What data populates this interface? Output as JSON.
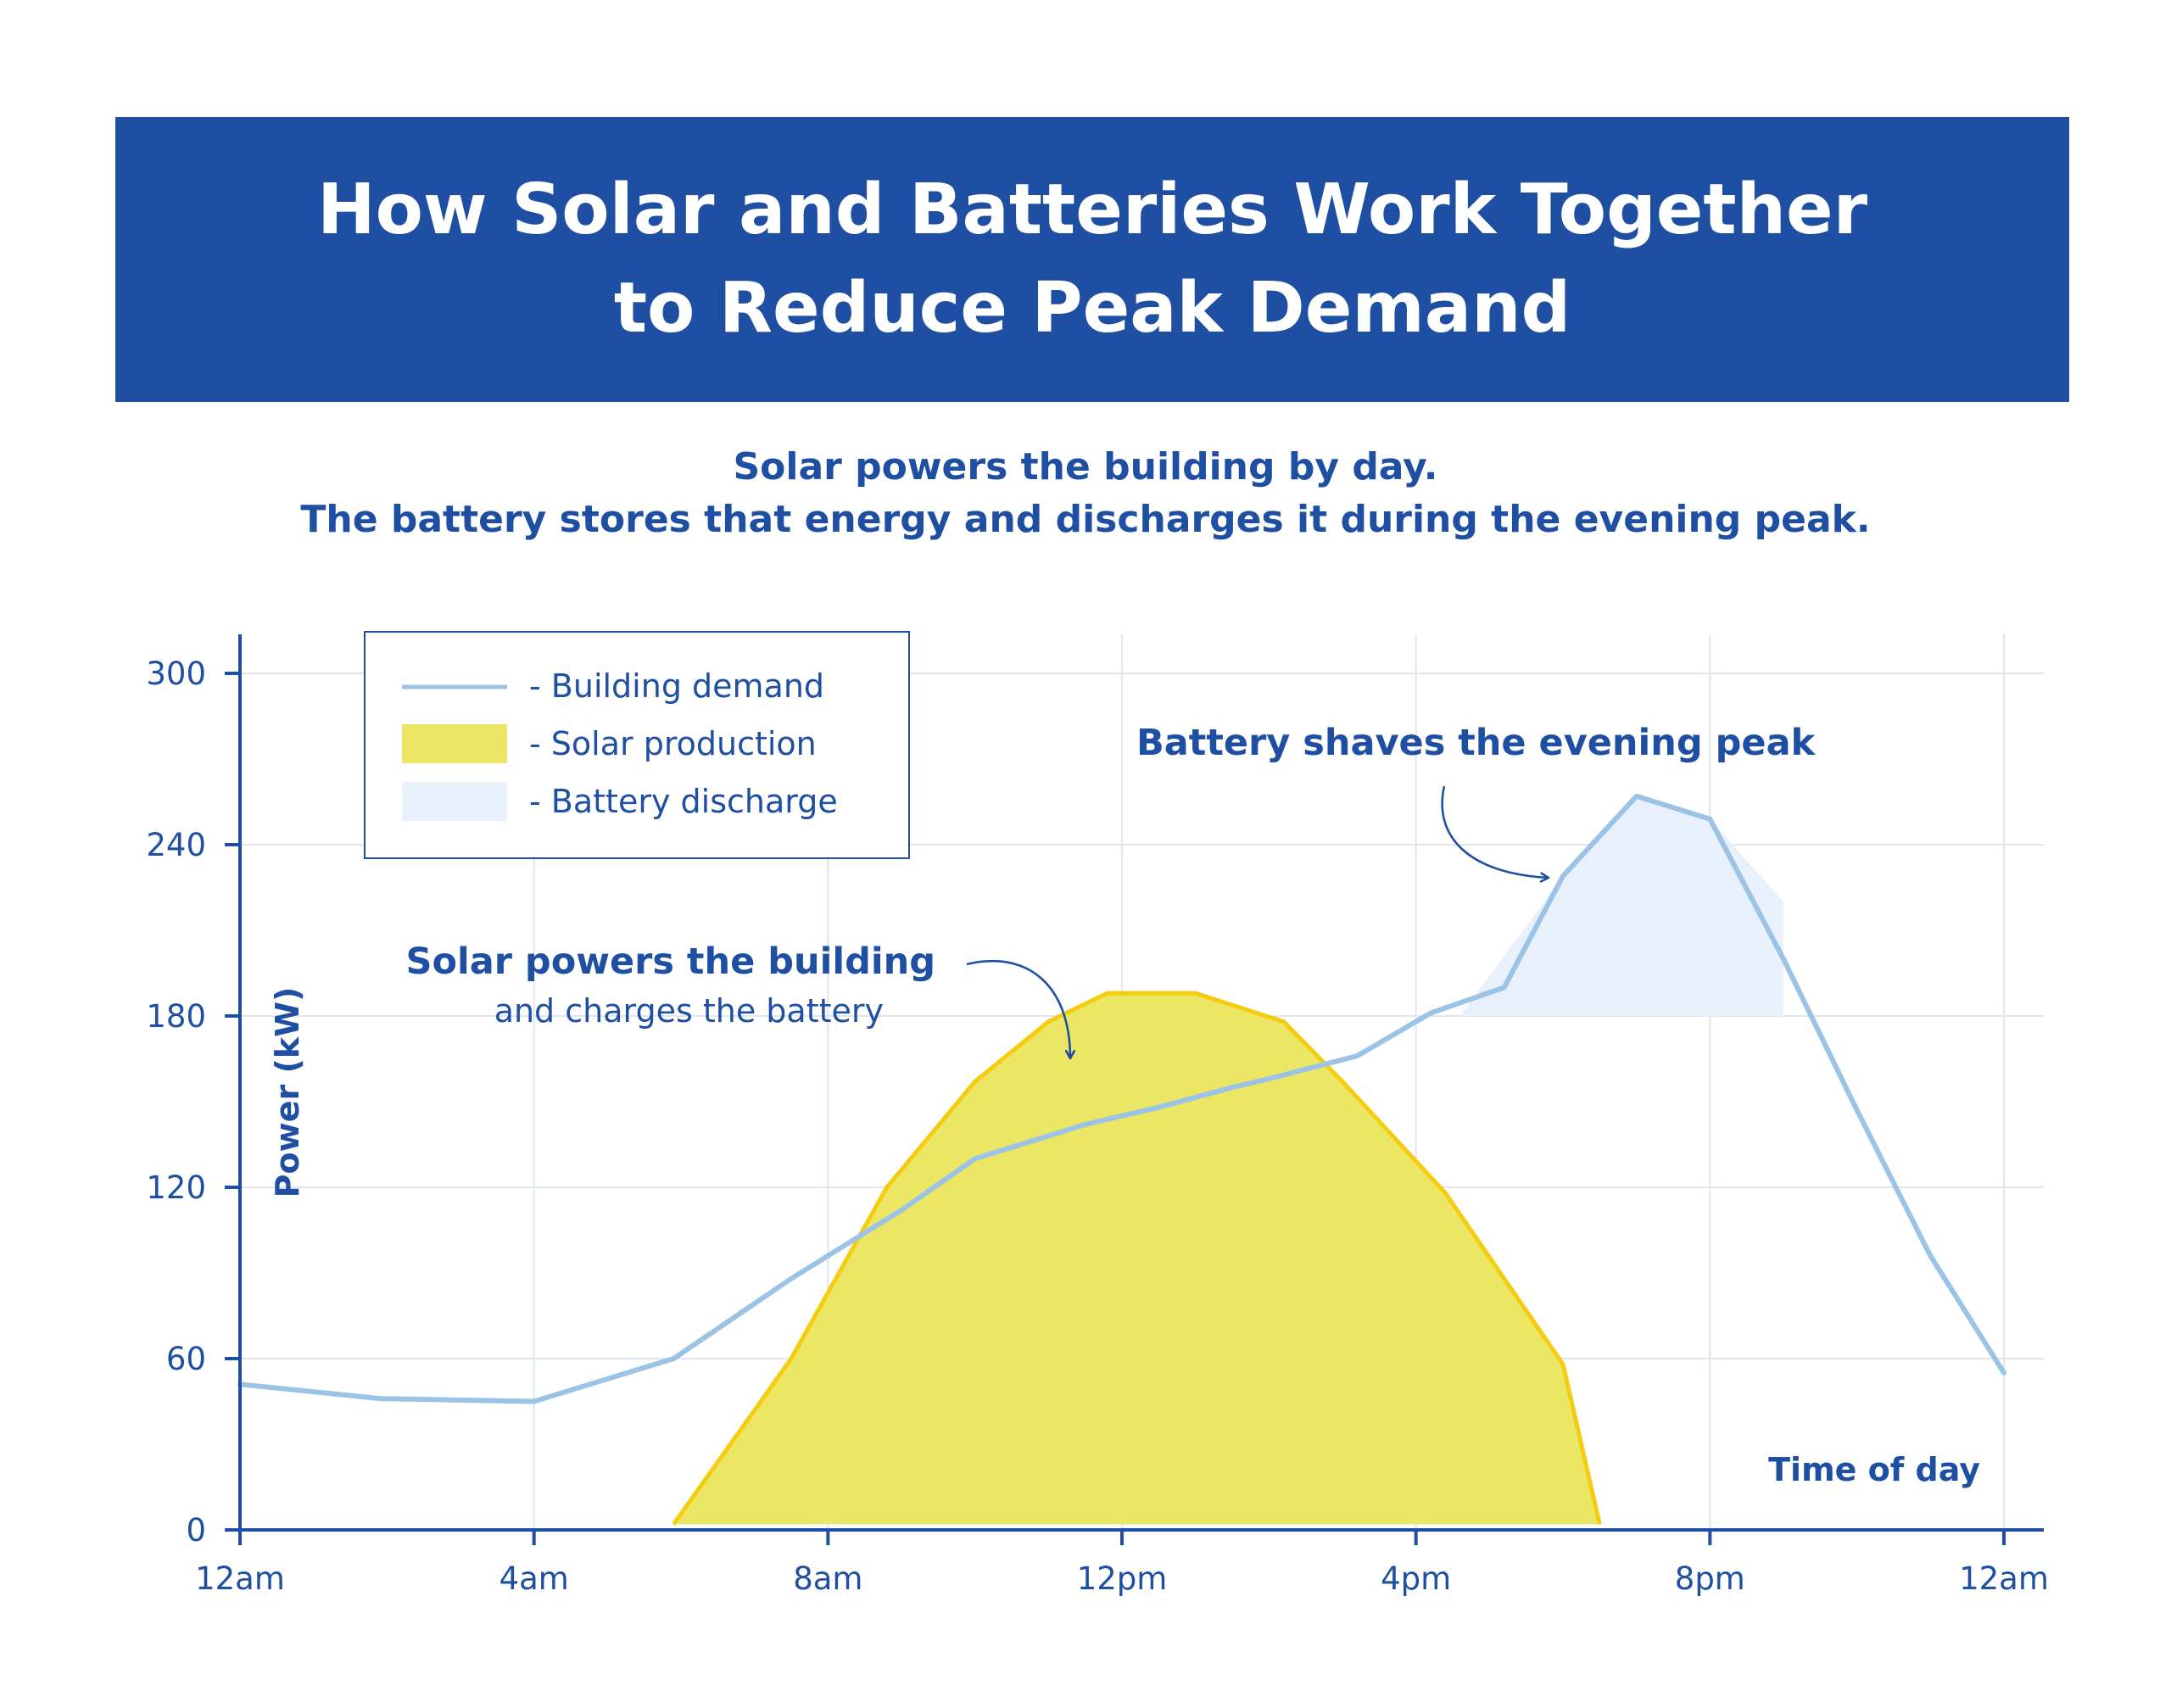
{
  "header": {
    "title_line1": "How Solar and Batteries Work Together",
    "title_line2": "to Reduce Peak Demand"
  },
  "subtitle": {
    "line1": "Solar powers the building by day.",
    "line2": "The battery stores that energy and discharges it during the evening peak."
  },
  "colors": {
    "banner": "#1f4fa3",
    "text": "#1f4fa3",
    "demand": "#9bc3e6",
    "solar_fill": "#ece665",
    "solar_stroke": "#f5cc10",
    "battery_fill": "#e8f1fb",
    "grid": "#dfe6ef",
    "axis": "#1f4fa3"
  },
  "chart_data": {
    "type": "line",
    "xlabel": "Time of day",
    "ylabel": "Power (kW)",
    "xlim": [
      0,
      24
    ],
    "ylim": [
      0,
      300
    ],
    "x_ticks": [
      0,
      4,
      8,
      12,
      16,
      20,
      24
    ],
    "x_tick_labels": [
      "12am",
      "4am",
      "8am",
      "12pm",
      "4pm",
      "8pm",
      "12am"
    ],
    "y_ticks": [
      0,
      60,
      120,
      180,
      240,
      300
    ],
    "y_tick_labels": [
      "0",
      "60",
      "120",
      "180",
      "240",
      "300"
    ],
    "grid": true,
    "legend": {
      "position": "top-left",
      "entries": [
        {
          "key": "demand",
          "label": "- Building demand",
          "kind": "line"
        },
        {
          "key": "solar",
          "label": "- Solar production",
          "kind": "area"
        },
        {
          "key": "battery",
          "label": "- Battery discharge",
          "kind": "area"
        }
      ]
    },
    "series": [
      {
        "key": "demand",
        "type": "line",
        "x": [
          0,
          1.9,
          4.0,
          5.9,
          7.5,
          9.0,
          10.0,
          11.5,
          12.5,
          13.5,
          14.0,
          15.2,
          16.2,
          17.2,
          18.0,
          19.0,
          20.0,
          21.0,
          22.0,
          23.0,
          24.0
        ],
        "y": [
          51,
          46,
          45,
          60,
          88,
          112,
          130,
          142,
          148,
          155,
          158,
          166,
          181,
          190,
          229,
          257,
          249,
          200,
          147,
          96,
          55
        ]
      },
      {
        "key": "solar",
        "type": "area",
        "x": [
          5.9,
          7.5,
          8.8,
          10.0,
          11.0,
          11.8,
          13.0,
          14.2,
          15.0,
          16.4,
          18.0,
          18.5
        ],
        "y": [
          2,
          60,
          120,
          157,
          178,
          188,
          188,
          178,
          157,
          118,
          58,
          2
        ]
      },
      {
        "key": "battery",
        "type": "area",
        "x": [
          16.6,
          18.0,
          19.0,
          20.0,
          21.0,
          21.0
        ],
        "y": [
          180,
          229,
          257,
          249,
          220,
          180
        ]
      }
    ],
    "annotations": [
      {
        "key": "solar",
        "title": "Solar powers the building",
        "text": "and charges the battery"
      },
      {
        "key": "battery",
        "title": "Battery shaves the evening peak"
      }
    ]
  }
}
